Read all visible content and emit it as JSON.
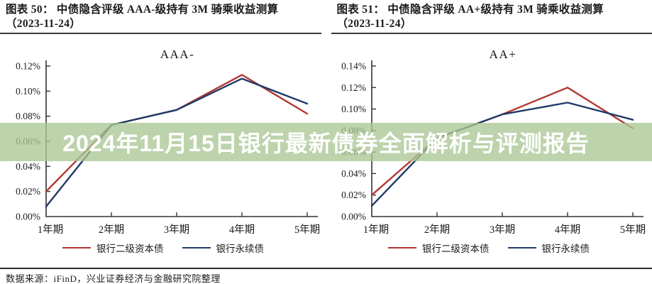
{
  "page": {
    "background": "#ffffff"
  },
  "header": {
    "left": {
      "line1": "图表 50：  中债隐含评级 AAA-级持有 3M 骑乘收益测算",
      "line2": "（2023-11-24）"
    },
    "right": {
      "line1": "图表 51：  中债隐含评级 AA+级持有 3M 骑乘收益测算",
      "line2": "（2023-11-24）"
    }
  },
  "banner": {
    "text": "2024年11月15日银行最新债券全面解析与评测报告",
    "background_rgba": "rgba(171,198,149,0.78)",
    "text_color": "#ffffff"
  },
  "footer": {
    "source": "数据来源：iFinD，兴业证券经济与金融研究院整理"
  },
  "colors": {
    "axis": "#333333",
    "tier2_red": "#b23931",
    "perpetual_blue": "#1f3a68"
  },
  "chart_data": [
    {
      "type": "line",
      "title": "AAA-",
      "categories": [
        "1年期",
        "2年期",
        "3年期",
        "4年期",
        "5年期"
      ],
      "series": [
        {
          "name": "银行二级资本债",
          "color": "#b23931",
          "values": [
            0.02,
            0.073,
            0.085,
            0.113,
            0.082
          ]
        },
        {
          "name": "银行永续债",
          "color": "#1f3a68",
          "values": [
            0.008,
            0.073,
            0.085,
            0.11,
            0.09
          ]
        }
      ],
      "xlabel": "",
      "ylabel": "",
      "ylim": [
        0,
        0.12
      ],
      "ytick_step": 0.02,
      "ytick_format": "0.00%",
      "grid": false,
      "legend_position": "bottom"
    },
    {
      "type": "line",
      "title": "AA+",
      "categories": [
        "1年期",
        "2年期",
        "3年期",
        "4年期",
        "5年期"
      ],
      "series": [
        {
          "name": "银行二级资本债",
          "color": "#b23931",
          "values": [
            0.02,
            0.073,
            0.095,
            0.12,
            0.082
          ]
        },
        {
          "name": "银行永续债",
          "color": "#1f3a68",
          "values": [
            0.01,
            0.073,
            0.095,
            0.106,
            0.09
          ]
        }
      ],
      "xlabel": "",
      "ylabel": "",
      "ylim": [
        0,
        0.14
      ],
      "ytick_step": 0.02,
      "ytick_format": "0.00%",
      "grid": false,
      "legend_position": "bottom"
    }
  ]
}
